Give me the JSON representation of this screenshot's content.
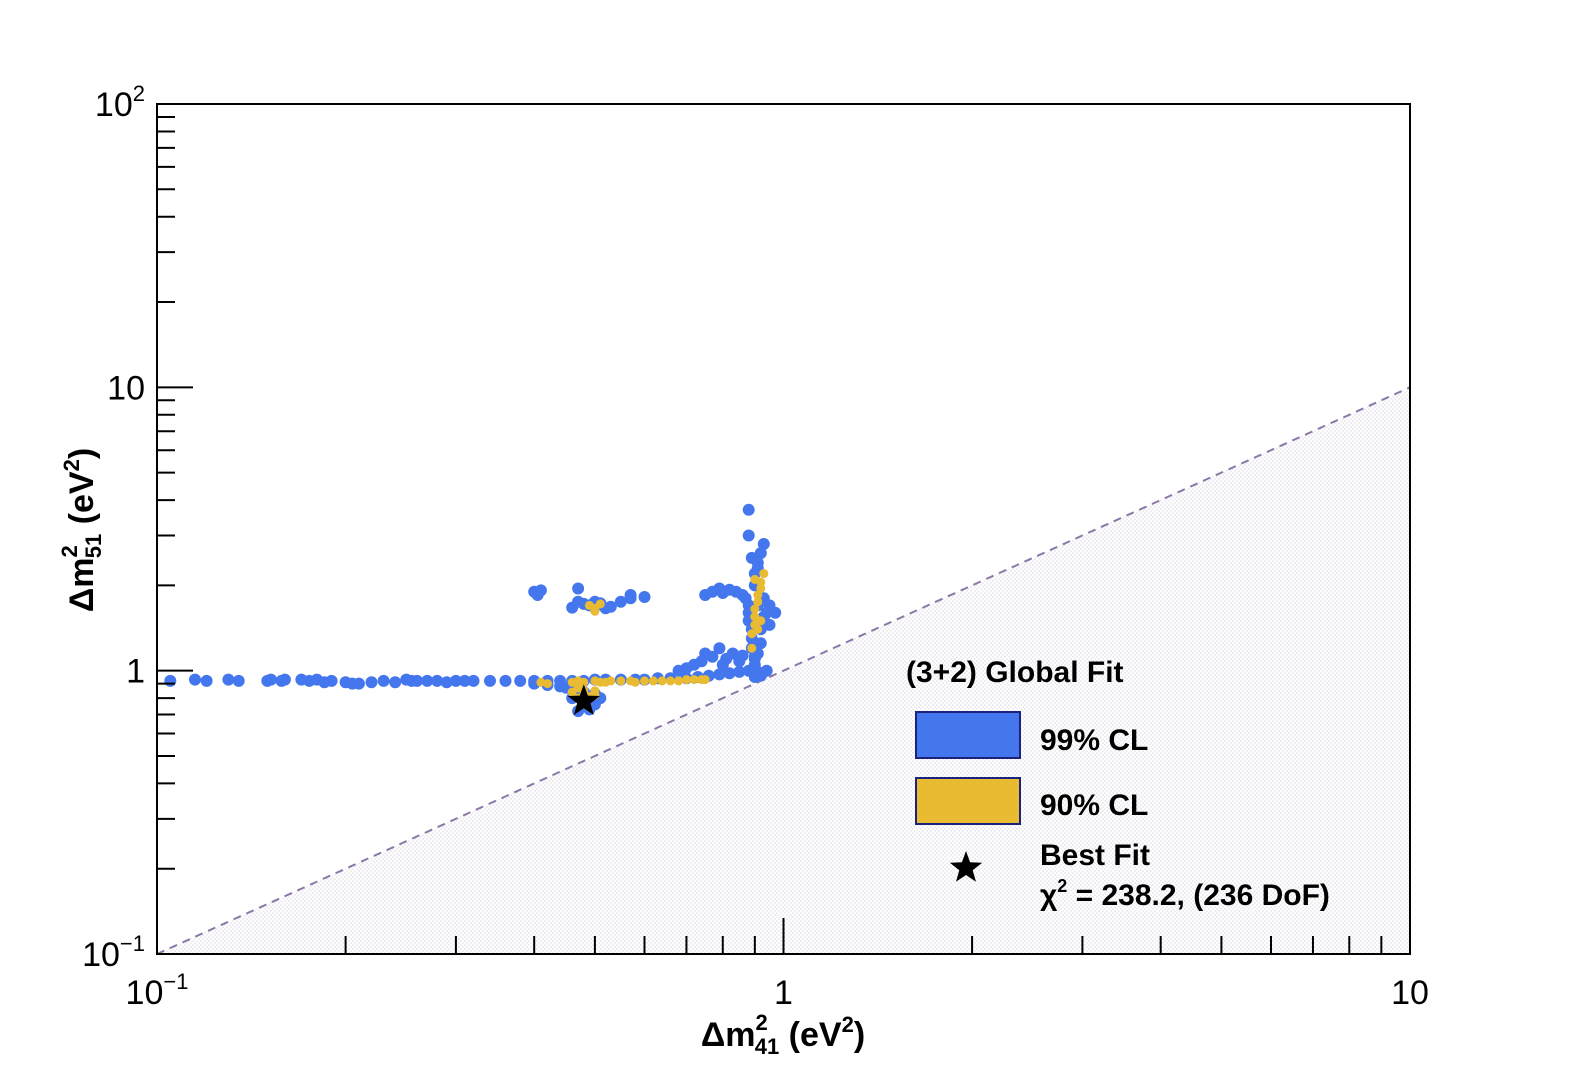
{
  "chart_data": {
    "type": "scatter",
    "x_scale": "log",
    "y_scale": "log",
    "xlim": [
      0.1,
      10
    ],
    "ylim": [
      0.1,
      100
    ],
    "xlabel": {
      "prefix": "Δm",
      "sup": "2",
      "sub": "41",
      "unit_open": " (eV",
      "unit_sup": "2",
      "unit_close": ")"
    },
    "ylabel": {
      "prefix": "Δm",
      "sup": "2",
      "sub": "51",
      "unit_open": " (eV",
      "unit_sup": "2",
      "unit_close": ")"
    },
    "x_ticks": [
      {
        "value": 0.1,
        "base": "10",
        "exp": "−1"
      },
      {
        "value": 1,
        "base": "1",
        "exp": ""
      },
      {
        "value": 10,
        "base": "10",
        "exp": ""
      }
    ],
    "y_ticks": [
      {
        "value": 0.1,
        "base": "10",
        "exp": "−1"
      },
      {
        "value": 1,
        "base": "1",
        "exp": ""
      },
      {
        "value": 10,
        "base": "10",
        "exp": ""
      },
      {
        "value": 100,
        "base": "10",
        "exp": "2"
      }
    ],
    "excluded_region": {
      "boundary": "y = x",
      "side": "below",
      "style": "dashed line with hatched fill"
    },
    "legend_title": "(3+2) Global Fit",
    "legend_position": "bottom-right",
    "series": [
      {
        "name": "99% CL",
        "color": "#4477ee",
        "points": [
          [
            0.105,
            0.92
          ],
          [
            0.115,
            0.93
          ],
          [
            0.12,
            0.92
          ],
          [
            0.13,
            0.93
          ],
          [
            0.135,
            0.92
          ],
          [
            0.15,
            0.92
          ],
          [
            0.152,
            0.93
          ],
          [
            0.158,
            0.92
          ],
          [
            0.16,
            0.93
          ],
          [
            0.17,
            0.93
          ],
          [
            0.175,
            0.92
          ],
          [
            0.18,
            0.93
          ],
          [
            0.185,
            0.91
          ],
          [
            0.19,
            0.92
          ],
          [
            0.2,
            0.91
          ],
          [
            0.205,
            0.9
          ],
          [
            0.21,
            0.9
          ],
          [
            0.22,
            0.91
          ],
          [
            0.23,
            0.92
          ],
          [
            0.24,
            0.91
          ],
          [
            0.25,
            0.93
          ],
          [
            0.255,
            0.92
          ],
          [
            0.26,
            0.92
          ],
          [
            0.27,
            0.92
          ],
          [
            0.28,
            0.92
          ],
          [
            0.29,
            0.91
          ],
          [
            0.3,
            0.92
          ],
          [
            0.31,
            0.92
          ],
          [
            0.32,
            0.92
          ],
          [
            0.34,
            0.92
          ],
          [
            0.36,
            0.92
          ],
          [
            0.38,
            0.92
          ],
          [
            0.4,
            0.92
          ],
          [
            0.42,
            0.92
          ],
          [
            0.44,
            0.92
          ],
          [
            0.46,
            0.92
          ],
          [
            0.48,
            0.92
          ],
          [
            0.5,
            0.93
          ],
          [
            0.52,
            0.93
          ],
          [
            0.55,
            0.93
          ],
          [
            0.58,
            0.93
          ],
          [
            0.6,
            0.93
          ],
          [
            0.63,
            0.94
          ],
          [
            0.66,
            0.94
          ],
          [
            0.7,
            0.94
          ],
          [
            0.73,
            0.95
          ],
          [
            0.76,
            0.96
          ],
          [
            0.79,
            0.97
          ],
          [
            0.82,
            0.98
          ],
          [
            0.85,
            0.99
          ],
          [
            0.88,
            1.0
          ],
          [
            0.9,
            0.95
          ],
          [
            0.91,
            0.99
          ],
          [
            0.92,
            0.96
          ],
          [
            0.4,
            0.9
          ],
          [
            0.42,
            0.89
          ],
          [
            0.44,
            0.88
          ],
          [
            0.45,
            0.87
          ],
          [
            0.46,
            0.86
          ],
          [
            0.47,
            0.85
          ],
          [
            0.48,
            0.84
          ],
          [
            0.48,
            0.8
          ],
          [
            0.49,
            0.78
          ],
          [
            0.48,
            0.75
          ],
          [
            0.47,
            0.72
          ],
          [
            0.49,
            0.73
          ],
          [
            0.5,
            0.76
          ],
          [
            0.51,
            0.8
          ],
          [
            0.5,
            0.83
          ],
          [
            0.46,
            0.8
          ],
          [
            0.4,
            1.9
          ],
          [
            0.405,
            1.85
          ],
          [
            0.41,
            1.92
          ],
          [
            0.47,
            1.95
          ],
          [
            0.47,
            1.75
          ],
          [
            0.48,
            1.72
          ],
          [
            0.49,
            1.7
          ],
          [
            0.5,
            1.75
          ],
          [
            0.5,
            1.68
          ],
          [
            0.51,
            1.73
          ],
          [
            0.52,
            1.66
          ],
          [
            0.53,
            1.68
          ],
          [
            0.55,
            1.75
          ],
          [
            0.46,
            1.67
          ],
          [
            0.57,
            1.8
          ],
          [
            0.75,
            1.85
          ],
          [
            0.77,
            1.9
          ],
          [
            0.79,
            1.95
          ],
          [
            0.8,
            1.88
          ],
          [
            0.82,
            1.93
          ],
          [
            0.84,
            1.9
          ],
          [
            0.86,
            1.85
          ],
          [
            0.87,
            1.8
          ],
          [
            0.88,
            1.7
          ],
          [
            0.88,
            1.6
          ],
          [
            0.88,
            1.5
          ],
          [
            0.89,
            1.4
          ],
          [
            0.89,
            1.3
          ],
          [
            0.89,
            1.2
          ],
          [
            0.9,
            1.1
          ],
          [
            0.9,
            1.05
          ],
          [
            0.91,
            1.15
          ],
          [
            0.92,
            1.25
          ],
          [
            0.92,
            1.4
          ],
          [
            0.93,
            1.55
          ],
          [
            0.91,
            1.7
          ],
          [
            0.93,
            1.8
          ],
          [
            0.94,
            1.6
          ],
          [
            0.95,
            1.45
          ],
          [
            0.9,
            2.0
          ],
          [
            0.9,
            2.2
          ],
          [
            0.91,
            2.4
          ],
          [
            0.92,
            2.6
          ],
          [
            0.93,
            2.8
          ],
          [
            0.88,
            3.0
          ],
          [
            0.89,
            2.5
          ],
          [
            0.91,
            2.3
          ],
          [
            0.95,
            1.7
          ],
          [
            0.97,
            1.6
          ],
          [
            0.88,
            3.7
          ],
          [
            0.75,
            1.15
          ],
          [
            0.77,
            1.12
          ],
          [
            0.79,
            1.2
          ],
          [
            0.81,
            1.1
          ],
          [
            0.83,
            1.15
          ],
          [
            0.85,
            1.08
          ],
          [
            0.86,
            1.13
          ],
          [
            0.72,
            1.05
          ],
          [
            0.74,
            1.08
          ],
          [
            0.68,
            1.0
          ],
          [
            0.7,
            1.02
          ],
          [
            0.8,
            1.05
          ],
          [
            0.92,
            0.98
          ],
          [
            0.94,
            1.0
          ],
          [
            0.9,
            1.12
          ],
          [
            0.57,
            1.85
          ],
          [
            0.6,
            1.82
          ]
        ]
      },
      {
        "name": "90% CL",
        "color": "#e8bb33",
        "points": [
          [
            0.41,
            0.91
          ],
          [
            0.42,
            0.9
          ],
          [
            0.46,
            0.91
          ],
          [
            0.47,
            0.92
          ],
          [
            0.48,
            0.91
          ],
          [
            0.5,
            0.92
          ],
          [
            0.51,
            0.91
          ],
          [
            0.52,
            0.91
          ],
          [
            0.53,
            0.92
          ],
          [
            0.55,
            0.92
          ],
          [
            0.57,
            0.92
          ],
          [
            0.58,
            0.91
          ],
          [
            0.6,
            0.92
          ],
          [
            0.62,
            0.92
          ],
          [
            0.64,
            0.92
          ],
          [
            0.66,
            0.92
          ],
          [
            0.68,
            0.92
          ],
          [
            0.7,
            0.93
          ],
          [
            0.72,
            0.93
          ],
          [
            0.74,
            0.93
          ],
          [
            0.75,
            0.93
          ],
          [
            0.47,
            0.87
          ],
          [
            0.48,
            0.85
          ],
          [
            0.48,
            0.83
          ],
          [
            0.49,
            0.81
          ],
          [
            0.47,
            0.8
          ],
          [
            0.48,
            0.78
          ],
          [
            0.5,
            0.82
          ],
          [
            0.5,
            0.85
          ],
          [
            0.46,
            0.84
          ],
          [
            0.49,
            1.7
          ],
          [
            0.5,
            1.66
          ],
          [
            0.51,
            1.72
          ],
          [
            0.5,
            1.62
          ],
          [
            0.89,
            1.35
          ],
          [
            0.9,
            1.45
          ],
          [
            0.9,
            1.55
          ],
          [
            0.9,
            1.65
          ],
          [
            0.91,
            1.75
          ],
          [
            0.91,
            1.85
          ],
          [
            0.92,
            1.95
          ],
          [
            0.92,
            2.05
          ],
          [
            0.93,
            2.2
          ],
          [
            0.92,
            1.5
          ],
          [
            0.89,
            1.2
          ],
          [
            0.9,
            2.1
          ],
          [
            0.91,
            1.4
          ]
        ]
      }
    ],
    "best_fit": {
      "name": "Best Fit",
      "x": 0.48,
      "y": 0.78,
      "chi_prefix": "χ",
      "chi_sup": "2",
      "chi_value": " = 238.2, (236 DoF)"
    }
  }
}
